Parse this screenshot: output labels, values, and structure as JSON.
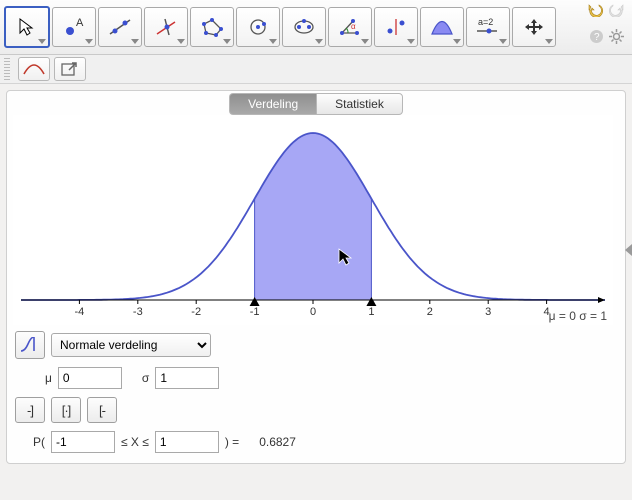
{
  "toolbar": {
    "tools": [
      {
        "name": "move-tool",
        "selected": true
      },
      {
        "name": "point-tool"
      },
      {
        "name": "line-tool"
      },
      {
        "name": "perpendicular-tool"
      },
      {
        "name": "polygon-tool"
      },
      {
        "name": "circle-tool"
      },
      {
        "name": "ellipse-tool"
      },
      {
        "name": "angle-tool"
      },
      {
        "name": "reflect-tool"
      },
      {
        "name": "prob-tool"
      },
      {
        "name": "slider-tool",
        "label": "a=2"
      },
      {
        "name": "move-view-tool"
      }
    ]
  },
  "tabs": {
    "distribution": "Verdeling",
    "statistics": "Statistiek",
    "active": "distribution"
  },
  "chart": {
    "type": "area",
    "curve_color": "#4a55c9",
    "fill_color": "#8a8af2",
    "fill_opacity": 0.75,
    "axis_color": "#000000",
    "tick_color": "#000000",
    "background": "#ffffff",
    "xmin": -5,
    "xmax": 5,
    "xticks": [
      -4,
      -3,
      -2,
      -1,
      0,
      1,
      2,
      3,
      4
    ],
    "shade_from": -1,
    "shade_to": 1,
    "mu": 0,
    "sigma": 1,
    "param_text": "μ = 0   σ = 1"
  },
  "dist_select": {
    "label": "Normale verdeling"
  },
  "params": {
    "mu_label": "μ",
    "mu_value": "0",
    "sigma_label": "σ",
    "sigma_value": "1"
  },
  "interval_buttons": [
    "-]",
    "[·]",
    "[-"
  ],
  "prob": {
    "prefix": "P(",
    "lo": "-1",
    "mid": "≤ X ≤",
    "hi": "1",
    "suffix": ") =",
    "value": "0.6827"
  }
}
